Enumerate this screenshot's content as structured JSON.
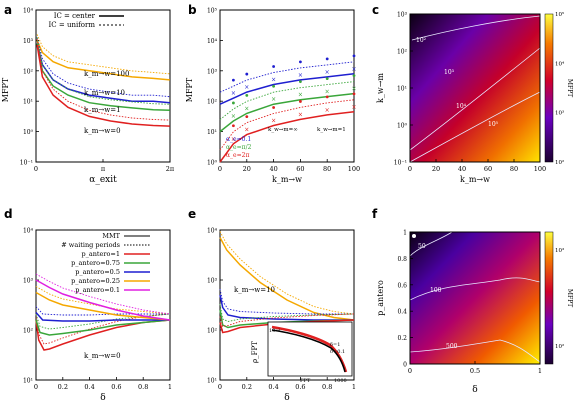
{
  "panels": {
    "a": {
      "letter": "a",
      "ylabel": "MFPT",
      "xlabel": "α_exit",
      "yticks": [
        "10⁻¹",
        "10⁰",
        "10¹",
        "10²",
        "10³",
        "10⁴"
      ],
      "xticks": [
        "0",
        "π",
        "2π"
      ],
      "legend": [
        "IC = center",
        "IC = uniform"
      ],
      "annotations": [
        "k_m→w=100",
        "k_m→w=10",
        "k_m→w=1",
        "k_m→w=0"
      ]
    },
    "b": {
      "letter": "b",
      "ylabel": "MFPT",
      "xlabel": "k_m→w",
      "yticks": [
        "10⁰",
        "10¹",
        "10²",
        "10³",
        "10⁴",
        "10⁵"
      ],
      "xticks": [
        "0",
        "20",
        "40",
        "60",
        "80",
        "100"
      ],
      "legend_header": [
        "k_w→m=∞",
        "k_w→m=1"
      ],
      "legend": [
        "α_e=0.1",
        "α_e=π/2",
        "α_e=2π"
      ]
    },
    "c": {
      "letter": "c",
      "ylabel": "k_w→m",
      "xlabel": "k_m→w",
      "yticks": [
        "10⁻¹",
        "10⁰",
        "10¹",
        "10²",
        "10³"
      ],
      "xticks": [
        "0",
        "20",
        "40",
        "60",
        "80",
        "100"
      ],
      "colorbar_label": "MFPT",
      "colorbar_ticks": [
        "10²",
        "10³",
        "10⁴",
        "10⁵"
      ],
      "contour_labels": [
        "10²",
        "10³",
        "10⁴",
        "10⁵"
      ]
    },
    "d": {
      "letter": "d",
      "ylabel": "",
      "xlabel": "δ",
      "yticks": [
        "10¹",
        "10²",
        "10³",
        "10⁴"
      ],
      "xticks": [
        "0",
        "0.2",
        "0.4",
        "0.6",
        "0.8",
        "1"
      ],
      "legend": [
        "MMT",
        "# waiting periods",
        "p_antero=1",
        "p_antero=0.75",
        "p_antero=0.5",
        "p_antero=0.25",
        "p_antero=0.1"
      ],
      "annotation": "k_m→w=0"
    },
    "e": {
      "letter": "e",
      "ylabel": "",
      "xlabel": "δ",
      "yticks": [
        "10¹",
        "10²",
        "10³",
        "10⁴"
      ],
      "xticks": [
        "0",
        "0.2",
        "0.4",
        "0.6",
        "0.8",
        "1"
      ],
      "annotation": "k_m→w=10",
      "inset": {
        "ylabel": "ρ_FPT",
        "xlabel": "FPT",
        "xtick": "1000",
        "ytick": "10⁻³",
        "legend": [
          "δ=1",
          "δ=0.1"
        ]
      }
    },
    "f": {
      "letter": "f",
      "ylabel": "p_antero",
      "xlabel": "δ",
      "yticks": [
        "0",
        "0.2",
        "0.4",
        "0.6",
        "0.8",
        "1"
      ],
      "xticks": [
        "0",
        "0.5",
        "1"
      ],
      "colorbar_label": "MFPT",
      "colorbar_ticks": [
        "10²",
        "10³"
      ],
      "contour_labels": [
        "50",
        "100",
        "500"
      ]
    }
  },
  "colors": {
    "orange": "#f5a800",
    "green": "#3aa63a",
    "blue": "#1f1fd0",
    "red": "#e02020",
    "magenta": "#e020e0",
    "black": "#000000"
  },
  "chart_data": [
    {
      "panel": "a",
      "type": "line",
      "xlim": [
        0,
        6.283
      ],
      "ylim_log10": [
        -1,
        4
      ],
      "series": [
        {
          "color": "orange",
          "x": [
            0.05,
            0.3,
            0.8,
            1.5,
            2.5,
            3.5,
            4.5,
            5.5,
            6.28
          ],
          "log10y": [
            3.0,
            2.6,
            2.3,
            2.1,
            2.0,
            1.9,
            1.8,
            1.75,
            1.7
          ]
        },
        {
          "color": "blue",
          "x": [
            0.05,
            0.3,
            0.8,
            1.5,
            2.5,
            3.5,
            4.5,
            5.5,
            6.28
          ],
          "log10y": [
            2.9,
            2.2,
            1.7,
            1.4,
            1.2,
            1.1,
            1.0,
            1.0,
            0.95
          ]
        },
        {
          "color": "green",
          "x": [
            0.05,
            0.3,
            0.8,
            1.5,
            2.5,
            3.5,
            4.5,
            5.5,
            6.28
          ],
          "log10y": [
            2.9,
            2.0,
            1.5,
            1.2,
            0.95,
            0.85,
            0.78,
            0.72,
            0.7
          ]
        },
        {
          "color": "red",
          "x": [
            0.05,
            0.3,
            0.8,
            1.5,
            2.5,
            3.5,
            4.5,
            5.5,
            6.28
          ],
          "log10y": [
            2.85,
            1.8,
            1.2,
            0.8,
            0.5,
            0.35,
            0.25,
            0.2,
            0.18
          ]
        }
      ]
    },
    {
      "panel": "b",
      "type": "line",
      "xlim": [
        0,
        100
      ],
      "ylim_log10": [
        0,
        5
      ],
      "series": [
        {
          "color": "blue",
          "x": [
            0,
            10,
            20,
            40,
            60,
            80,
            100
          ],
          "log10y": [
            1.9,
            2.1,
            2.3,
            2.55,
            2.7,
            2.8,
            2.9
          ]
        },
        {
          "color": "green",
          "x": [
            0,
            10,
            20,
            40,
            60,
            80,
            100
          ],
          "log10y": [
            1.0,
            1.35,
            1.6,
            1.9,
            2.05,
            2.15,
            2.25
          ]
        },
        {
          "color": "red",
          "x": [
            0,
            10,
            20,
            40,
            60,
            80,
            100
          ],
          "log10y": [
            0.0,
            0.6,
            0.9,
            1.2,
            1.4,
            1.55,
            1.65
          ]
        }
      ]
    },
    {
      "panel": "d",
      "type": "line",
      "xlim": [
        0,
        1
      ],
      "ylim_log10": [
        1,
        4
      ],
      "series": [
        {
          "color": "red",
          "x": [
            0,
            0.02,
            0.06,
            0.1,
            0.2,
            0.4,
            0.6,
            0.8,
            1.0
          ],
          "log10y": [
            2.2,
            1.8,
            1.6,
            1.62,
            1.72,
            1.9,
            2.05,
            2.15,
            2.2
          ]
        },
        {
          "color": "green",
          "x": [
            0,
            0.03,
            0.1,
            0.2,
            0.4,
            0.6,
            0.8,
            1.0
          ],
          "log10y": [
            2.2,
            1.95,
            1.9,
            1.93,
            2.0,
            2.1,
            2.15,
            2.2
          ]
        },
        {
          "color": "blue",
          "x": [
            0,
            0.05,
            0.2,
            0.4,
            0.6,
            0.8,
            1.0
          ],
          "log10y": [
            2.35,
            2.2,
            2.18,
            2.18,
            2.2,
            2.2,
            2.2
          ]
        },
        {
          "color": "orange",
          "x": [
            0,
            0.1,
            0.2,
            0.4,
            0.6,
            0.8,
            1.0
          ],
          "log10y": [
            2.75,
            2.6,
            2.5,
            2.4,
            2.3,
            2.25,
            2.2
          ]
        },
        {
          "color": "magenta",
          "x": [
            0,
            0.1,
            0.2,
            0.4,
            0.6,
            0.8,
            1.0
          ],
          "log10y": [
            3.0,
            2.85,
            2.72,
            2.55,
            2.4,
            2.28,
            2.2
          ]
        }
      ]
    },
    {
      "panel": "e",
      "type": "line",
      "xlim": [
        0,
        1
      ],
      "ylim_log10": [
        1,
        4
      ],
      "series": [
        {
          "color": "orange",
          "x": [
            0,
            0.05,
            0.15,
            0.3,
            0.5,
            0.7,
            0.85,
            1.0
          ],
          "log10y": [
            3.85,
            3.6,
            3.3,
            2.95,
            2.6,
            2.35,
            2.25,
            2.2
          ]
        },
        {
          "color": "blue",
          "x": [
            0,
            0.02,
            0.06,
            0.15,
            0.4,
            0.7,
            1.0
          ],
          "log10y": [
            2.7,
            2.45,
            2.3,
            2.25,
            2.22,
            2.2,
            2.2
          ]
        },
        {
          "color": "green",
          "x": [
            0,
            0.02,
            0.06,
            0.15,
            0.4,
            0.7,
            1.0
          ],
          "log10y": [
            2.4,
            2.1,
            2.05,
            2.1,
            2.15,
            2.18,
            2.2
          ]
        },
        {
          "color": "red",
          "x": [
            0,
            0.02,
            0.06,
            0.15,
            0.4,
            0.7,
            1.0
          ],
          "log10y": [
            2.15,
            1.95,
            1.97,
            2.05,
            2.12,
            2.17,
            2.2
          ]
        }
      ]
    }
  ]
}
